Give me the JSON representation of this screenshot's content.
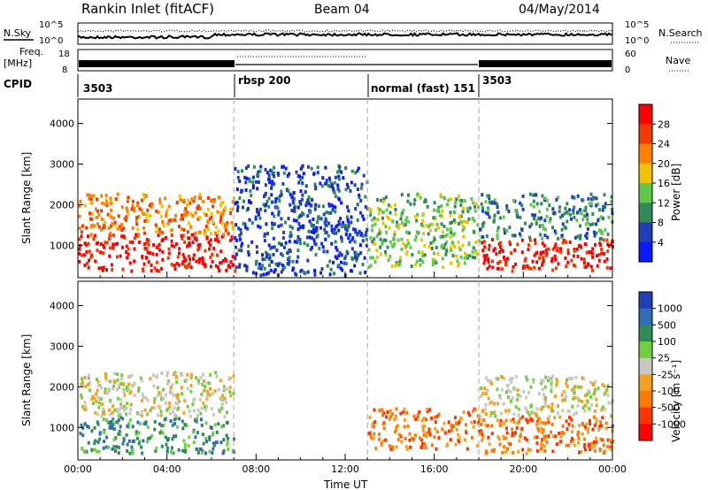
{
  "header": {
    "station": "Rankin Inlet (fitACF)",
    "beam": "Beam 04",
    "date": "04/May/2014"
  },
  "noise_panel": {
    "left_label": "N.Sky",
    "right_label": "N.Search",
    "left_ticks": [
      "10^5",
      "10^0"
    ],
    "right_ticks": [
      "10^5",
      "10^0"
    ]
  },
  "freq_panel": {
    "left_label_top": "Freq.",
    "left_label_bottom": "[MHz]",
    "right_label": "Nave",
    "left_ticks": [
      "18",
      "8"
    ],
    "right_ticks": [
      "60",
      "0"
    ]
  },
  "cpid_panel": {
    "label": "CPID",
    "segments": [
      {
        "label": "3503",
        "start_hour": 0,
        "end_hour": 7
      },
      {
        "label": "rbsp 200",
        "start_hour": 7,
        "end_hour": 13
      },
      {
        "label": "normal (fast) 151",
        "start_hour": 13,
        "end_hour": 18
      },
      {
        "label": "3503",
        "start_hour": 18,
        "end_hour": 24
      }
    ]
  },
  "chart_data": [
    {
      "type": "heatmap",
      "name": "power",
      "ylabel": "Slant Range [km]",
      "yticks": [
        "1000",
        "2000",
        "3000",
        "4000"
      ],
      "ylim": [
        200,
        4600
      ],
      "xlim": [
        0,
        24
      ],
      "colorbar_label": "Power [dB]",
      "colorbar_ticks": [
        "4",
        "8",
        "12",
        "16",
        "20",
        "24",
        "28"
      ],
      "colors": [
        "#0a1aff",
        "#1f3fb8",
        "#2e8b57",
        "#5fc94a",
        "#f2c200",
        "#ff7f00",
        "#f03a00",
        "#ff0000"
      ],
      "features": [
        {
          "t0": 0,
          "t1": 7,
          "r0": 400,
          "r1": 1300,
          "level": 7
        },
        {
          "t0": 0,
          "t1": 7,
          "r0": 1300,
          "r1": 2300,
          "level": 5
        },
        {
          "t0": 7,
          "t1": 13,
          "r0": 300,
          "r1": 3000,
          "level": 1
        },
        {
          "t0": 13,
          "t1": 18,
          "r0": 500,
          "r1": 2300,
          "level": 3
        },
        {
          "t0": 18,
          "t1": 24,
          "r0": 400,
          "r1": 1200,
          "level": 7
        },
        {
          "t0": 18,
          "t1": 24,
          "r0": 1200,
          "r1": 2300,
          "level": 2
        }
      ]
    },
    {
      "type": "heatmap",
      "name": "velocity",
      "ylabel": "Slant Range [km]",
      "yticks": [
        "1000",
        "2000",
        "3000",
        "4000"
      ],
      "ylim": [
        200,
        4600
      ],
      "xlim": [
        0,
        24
      ],
      "xlabel": "Time UT",
      "xticks": [
        "00:00",
        "04:00",
        "08:00",
        "12:00",
        "16:00",
        "20:00",
        "00:00"
      ],
      "colorbar_label": "Velocity [m s⁻¹]",
      "colorbar_ticks": [
        "1000",
        "500",
        "100",
        "25",
        "-25",
        "-100",
        "-500",
        "-1000"
      ],
      "colors": [
        "#1f3fb8",
        "#2f6db8",
        "#2e8b57",
        "#6fcf3f",
        "#c8c8c0",
        "#f5a020",
        "#ff7a00",
        "#ff3300",
        "#ff0000"
      ],
      "features": [
        {
          "t0": 0,
          "t1": 7,
          "r0": 400,
          "r1": 1300,
          "level": 2
        },
        {
          "t0": 0,
          "t1": 7,
          "r0": 1300,
          "r1": 2400,
          "level": 4
        },
        {
          "t0": 13,
          "t1": 18,
          "r0": 500,
          "r1": 1500,
          "level": 6
        },
        {
          "t0": 18,
          "t1": 24,
          "r0": 400,
          "r1": 1300,
          "level": 6
        },
        {
          "t0": 18,
          "t1": 24,
          "r0": 1300,
          "r1": 2300,
          "level": 4
        }
      ]
    }
  ]
}
